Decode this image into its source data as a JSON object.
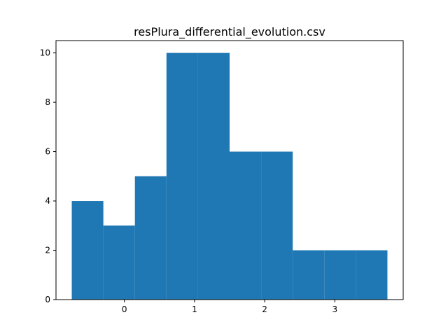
{
  "chart_data": {
    "type": "bar",
    "title": "resPlura_differential_evolution.csv",
    "xlabel": "",
    "ylabel": "",
    "bins": [
      {
        "x0": -0.75,
        "x1": -0.3,
        "count": 4
      },
      {
        "x0": -0.3,
        "x1": 0.15,
        "count": 3
      },
      {
        "x0": 0.15,
        "x1": 0.6,
        "count": 5
      },
      {
        "x0": 0.6,
        "x1": 1.05,
        "count": 10
      },
      {
        "x0": 1.05,
        "x1": 1.5,
        "count": 10
      },
      {
        "x0": 1.5,
        "x1": 1.95,
        "count": 6
      },
      {
        "x0": 1.95,
        "x1": 2.4,
        "count": 6
      },
      {
        "x0": 2.4,
        "x1": 2.85,
        "count": 2
      },
      {
        "x0": 2.85,
        "x1": 3.3,
        "count": 2
      },
      {
        "x0": 3.3,
        "x1": 3.75,
        "count": 2
      }
    ],
    "xlim": [
      -0.975,
      3.975
    ],
    "ylim": [
      0,
      10.5
    ],
    "xticks": [
      "0",
      "1",
      "2",
      "3"
    ],
    "yticks": [
      "0",
      "2",
      "4",
      "6",
      "8",
      "10"
    ],
    "grid": false,
    "bar_color": "#1f77b4"
  }
}
